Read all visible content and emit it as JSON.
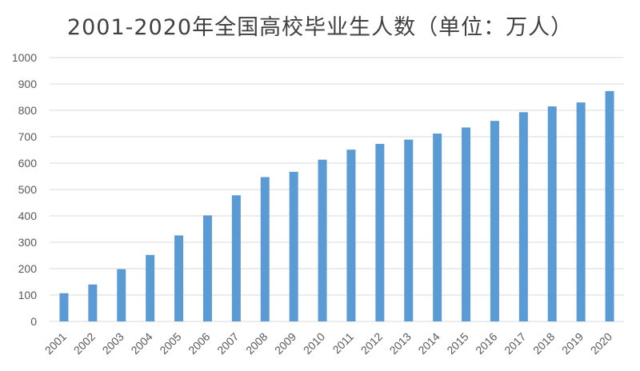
{
  "chart_data": {
    "type": "bar",
    "title": "2001-2020年全国高校毕业生人数（单位：万人）",
    "categories": [
      "2001",
      "2002",
      "2003",
      "2004",
      "2005",
      "2006",
      "2007",
      "2008",
      "2009",
      "2010",
      "2011",
      "2012",
      "2013",
      "2014",
      "2015",
      "2016",
      "2017",
      "2018",
      "2019",
      "2020"
    ],
    "values": [
      107,
      140,
      198,
      252,
      326,
      402,
      478,
      547,
      567,
      613,
      651,
      673,
      689,
      712,
      735,
      760,
      793,
      815,
      830,
      873
    ],
    "ylim": [
      0,
      1000
    ],
    "yticks": [
      0,
      100,
      200,
      300,
      400,
      500,
      600,
      700,
      800,
      900,
      1000
    ],
    "grid": true,
    "bar_color": "#5b9bd5",
    "grid_color": "#d9d9d9"
  }
}
